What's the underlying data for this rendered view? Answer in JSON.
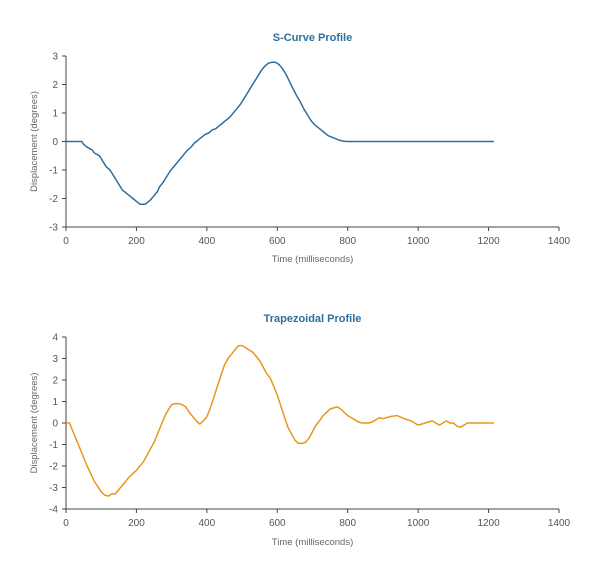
{
  "chart_data": [
    {
      "type": "line",
      "title": "S-Curve Profile",
      "xlabel": "Time (milliseconds)",
      "ylabel": "Displacement (degrees)",
      "xlim": [
        0,
        1400
      ],
      "ylim": [
        -3,
        3
      ],
      "xticks": [
        "0",
        "200",
        "400",
        "600",
        "800",
        "1000",
        "1200",
        "1400"
      ],
      "yticks": [
        "3",
        "2",
        "1",
        "0",
        "-1",
        "-2",
        "-3"
      ],
      "grid": false,
      "color": "#2e6f9e",
      "title_color": "#2e6f9e",
      "series": [
        {
          "x": [
            0,
            45,
            50,
            60,
            75,
            80,
            95,
            100,
            110,
            115,
            125,
            135,
            145,
            150,
            160,
            170,
            180,
            190,
            200,
            205,
            210,
            215,
            225,
            230,
            240,
            250,
            260,
            265,
            275,
            285,
            295,
            305,
            315,
            325,
            335,
            345,
            355,
            365,
            375,
            385,
            395,
            405,
            415,
            425,
            435,
            445,
            455,
            465,
            475,
            485,
            495,
            505,
            515,
            525,
            535,
            545,
            555,
            565,
            575,
            585,
            595,
            605,
            615,
            625,
            635,
            645,
            655,
            665,
            675,
            685,
            695,
            705,
            715,
            725,
            735,
            745,
            755,
            765,
            775,
            785,
            795,
            805,
            815,
            825,
            835,
            845,
            850,
            900,
            1000,
            1100,
            1215
          ],
          "y": [
            0,
            0,
            -0.1,
            -0.2,
            -0.3,
            -0.4,
            -0.5,
            -0.6,
            -0.8,
            -0.9,
            -1.0,
            -1.2,
            -1.4,
            -1.5,
            -1.7,
            -1.8,
            -1.9,
            -2.0,
            -2.1,
            -2.15,
            -2.2,
            -2.2,
            -2.2,
            -2.15,
            -2.05,
            -1.9,
            -1.75,
            -1.6,
            -1.45,
            -1.25,
            -1.05,
            -0.9,
            -0.75,
            -0.6,
            -0.45,
            -0.3,
            -0.2,
            -0.05,
            0.05,
            0.15,
            0.25,
            0.3,
            0.4,
            0.45,
            0.55,
            0.65,
            0.75,
            0.85,
            1.0,
            1.15,
            1.3,
            1.5,
            1.7,
            1.9,
            2.1,
            2.3,
            2.5,
            2.65,
            2.75,
            2.78,
            2.78,
            2.7,
            2.55,
            2.35,
            2.1,
            1.85,
            1.6,
            1.4,
            1.15,
            0.95,
            0.75,
            0.6,
            0.5,
            0.4,
            0.3,
            0.2,
            0.15,
            0.1,
            0.05,
            0.02,
            0,
            0,
            0,
            0,
            0,
            0,
            0,
            0,
            0,
            0,
            0
          ]
        }
      ]
    },
    {
      "type": "line",
      "title": "Trapezoidal Profile",
      "xlabel": "Time (milliseconds)",
      "ylabel": "Displacement (degrees)",
      "xlim": [
        0,
        1400
      ],
      "ylim": [
        -4,
        4
      ],
      "xticks": [
        "0",
        "200",
        "400",
        "600",
        "800",
        "1000",
        "1200",
        "1400"
      ],
      "yticks": [
        "4",
        "3",
        "2",
        "1",
        "0",
        "-1",
        "-2",
        "-3",
        "-4"
      ],
      "grid": false,
      "color": "#e8961e",
      "title_color": "#2e6f9e",
      "series": [
        {
          "x": [
            0,
            10,
            20,
            40,
            60,
            80,
            100,
            110,
            120,
            130,
            140,
            150,
            160,
            180,
            200,
            220,
            240,
            250,
            260,
            270,
            280,
            290,
            300,
            310,
            320,
            330,
            340,
            350,
            360,
            370,
            380,
            390,
            400,
            410,
            420,
            430,
            440,
            450,
            460,
            470,
            480,
            490,
            500,
            510,
            520,
            530,
            540,
            550,
            560,
            570,
            580,
            590,
            600,
            610,
            620,
            630,
            640,
            650,
            660,
            670,
            680,
            690,
            700,
            710,
            720,
            730,
            740,
            750,
            760,
            770,
            780,
            790,
            800,
            810,
            820,
            830,
            840,
            850,
            860,
            870,
            880,
            890,
            900,
            920,
            940,
            960,
            980,
            1000,
            1020,
            1040,
            1060,
            1070,
            1080,
            1090,
            1100,
            1110,
            1120,
            1140,
            1150,
            1160,
            1180,
            1200,
            1215
          ],
          "y": [
            0,
            0,
            -0.4,
            -1.2,
            -2.0,
            -2.7,
            -3.2,
            -3.35,
            -3.4,
            -3.3,
            -3.3,
            -3.1,
            -2.9,
            -2.5,
            -2.2,
            -1.8,
            -1.2,
            -0.9,
            -0.5,
            -0.1,
            0.3,
            0.6,
            0.85,
            0.9,
            0.9,
            0.85,
            0.75,
            0.5,
            0.3,
            0.1,
            -0.05,
            0.1,
            0.3,
            0.7,
            1.2,
            1.7,
            2.2,
            2.7,
            3.0,
            3.2,
            3.4,
            3.6,
            3.6,
            3.5,
            3.4,
            3.3,
            3.1,
            2.9,
            2.6,
            2.3,
            2.1,
            1.7,
            1.3,
            0.8,
            0.3,
            -0.2,
            -0.5,
            -0.8,
            -0.95,
            -0.95,
            -0.9,
            -0.7,
            -0.4,
            -0.1,
            0.1,
            0.35,
            0.5,
            0.65,
            0.7,
            0.75,
            0.65,
            0.5,
            0.35,
            0.25,
            0.15,
            0.05,
            0,
            0,
            0,
            0.05,
            0.15,
            0.25,
            0.2,
            0.3,
            0.35,
            0.2,
            0.1,
            -0.1,
            0.0,
            0.1,
            -0.1,
            0.0,
            0.1,
            0.0,
            0.0,
            -0.15,
            -0.2,
            0.0,
            0.0,
            0.0,
            0.0,
            0.0,
            0.0
          ]
        }
      ]
    }
  ]
}
